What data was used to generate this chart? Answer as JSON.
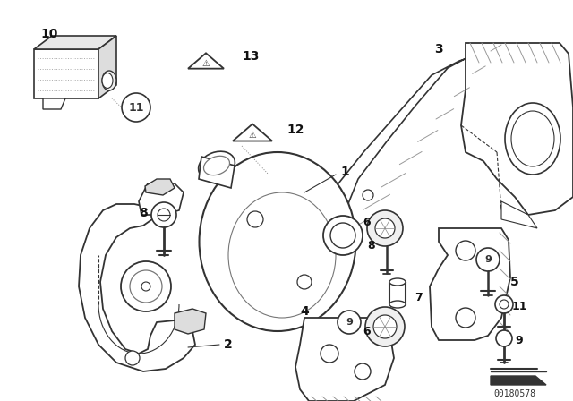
{
  "background_color": "#ffffff",
  "image_id": "00180578",
  "fig_width": 6.4,
  "fig_height": 4.48,
  "dpi": 100,
  "gray": "#333333",
  "lt_gray": "#888888",
  "lw_main": 1.2
}
